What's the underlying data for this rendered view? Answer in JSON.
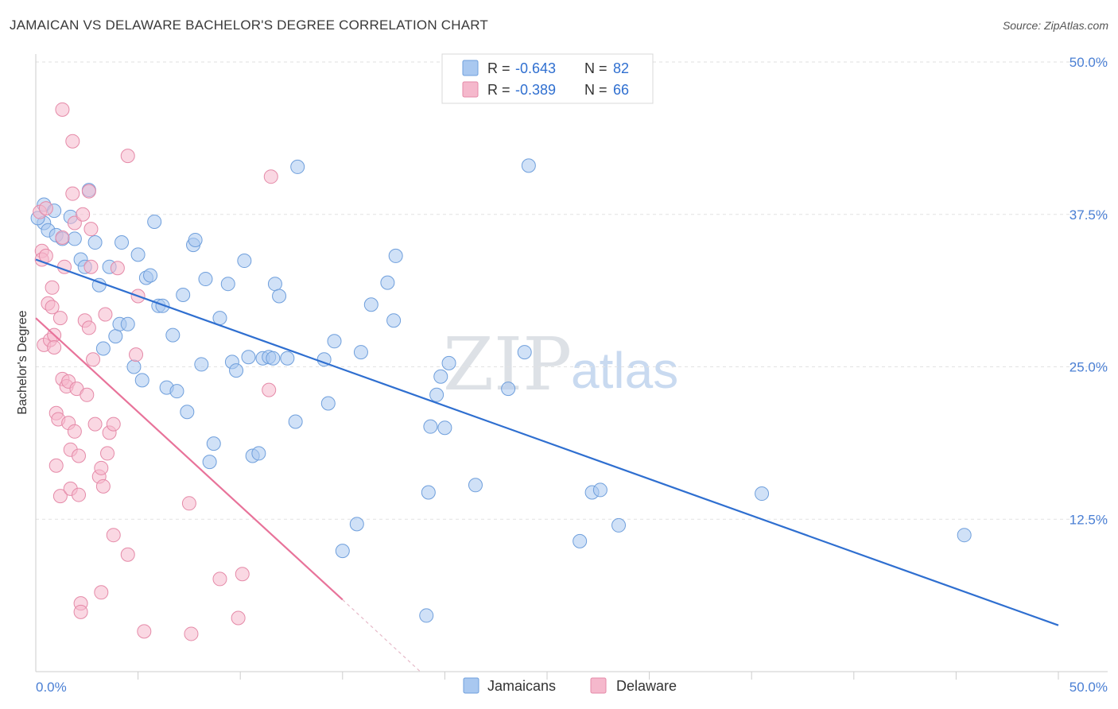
{
  "header": {
    "title": "JAMAICAN VS DELAWARE BACHELOR'S DEGREE CORRELATION CHART",
    "source": "Source: ZipAtlas.com"
  },
  "watermark": {
    "zip": "ZIP",
    "atlas": "atlas"
  },
  "legend": {
    "rows": [
      {
        "r_label": "R = ",
        "r_value": "-0.643",
        "n_label": "N = ",
        "n_value": "82",
        "color": "#a9c8f0"
      },
      {
        "r_label": "R = ",
        "r_value": "-0.389",
        "n_label": "N = ",
        "n_value": "66",
        "color": "#f5b8cc"
      }
    ]
  },
  "bottom_legend": {
    "items": [
      {
        "label": "Jamaicans",
        "color": "#a9c8f0"
      },
      {
        "label": "Delaware",
        "color": "#f5b8cc"
      }
    ]
  },
  "chart_data": {
    "type": "scatter",
    "title": "JAMAICAN VS DELAWARE BACHELOR'S DEGREE CORRELATION CHART",
    "xlabel": "",
    "ylabel": "Bachelor's Degree",
    "xlim": [
      0,
      50
    ],
    "ylim": [
      0,
      50
    ],
    "x_tick_labels": [
      "0.0%",
      "50.0%"
    ],
    "y_ticks": [
      12.5,
      25.0,
      37.5,
      50.0
    ],
    "y_tick_labels": [
      "12.5%",
      "25.0%",
      "37.5%",
      "50.0%"
    ],
    "grid": true,
    "series": [
      {
        "name": "Jamaicans",
        "color": "#a9c8f0",
        "stroke": "#6f9fdc",
        "trend_color": "#2f6fd0",
        "trend": {
          "x0": 0,
          "y0": 33.8,
          "x1": 50,
          "y1": 3.8
        },
        "points": [
          [
            0.4,
            38.3
          ],
          [
            0.4,
            36.8
          ],
          [
            0.6,
            36.2
          ],
          [
            0.9,
            37.8
          ],
          [
            1.0,
            35.8
          ],
          [
            1.3,
            35.5
          ],
          [
            1.7,
            37.3
          ],
          [
            1.9,
            35.5
          ],
          [
            2.2,
            33.8
          ],
          [
            2.4,
            33.2
          ],
          [
            2.6,
            39.5
          ],
          [
            2.9,
            35.2
          ],
          [
            3.1,
            31.7
          ],
          [
            3.3,
            26.5
          ],
          [
            3.6,
            33.2
          ],
          [
            3.9,
            27.5
          ],
          [
            4.1,
            28.5
          ],
          [
            4.2,
            35.2
          ],
          [
            4.5,
            28.5
          ],
          [
            4.8,
            25.0
          ],
          [
            5.0,
            34.2
          ],
          [
            5.2,
            23.9
          ],
          [
            5.4,
            32.3
          ],
          [
            5.6,
            32.5
          ],
          [
            5.8,
            36.9
          ],
          [
            6.0,
            30.0
          ],
          [
            6.2,
            30.0
          ],
          [
            6.4,
            23.3
          ],
          [
            6.7,
            27.6
          ],
          [
            6.9,
            23.0
          ],
          [
            7.2,
            30.9
          ],
          [
            7.4,
            21.3
          ],
          [
            7.7,
            35.0
          ],
          [
            7.8,
            35.4
          ],
          [
            8.1,
            25.2
          ],
          [
            8.3,
            32.2
          ],
          [
            8.5,
            17.2
          ],
          [
            8.7,
            18.7
          ],
          [
            9.0,
            29.0
          ],
          [
            9.4,
            31.8
          ],
          [
            9.6,
            25.4
          ],
          [
            9.8,
            24.7
          ],
          [
            10.2,
            33.7
          ],
          [
            10.4,
            25.8
          ],
          [
            10.6,
            17.7
          ],
          [
            10.9,
            17.9
          ],
          [
            11.1,
            25.7
          ],
          [
            11.4,
            25.8
          ],
          [
            11.6,
            25.7
          ],
          [
            11.7,
            31.8
          ],
          [
            11.9,
            30.8
          ],
          [
            12.3,
            25.7
          ],
          [
            12.7,
            20.5
          ],
          [
            12.8,
            41.4
          ],
          [
            14.1,
            25.6
          ],
          [
            14.3,
            22.0
          ],
          [
            14.6,
            27.1
          ],
          [
            15.0,
            9.9
          ],
          [
            15.7,
            12.1
          ],
          [
            15.9,
            26.2
          ],
          [
            16.4,
            30.1
          ],
          [
            17.2,
            31.9
          ],
          [
            17.5,
            28.8
          ],
          [
            17.6,
            34.1
          ],
          [
            19.1,
            4.6
          ],
          [
            19.2,
            14.7
          ],
          [
            19.3,
            20.1
          ],
          [
            19.6,
            22.7
          ],
          [
            19.8,
            24.2
          ],
          [
            20.0,
            20.0
          ],
          [
            20.2,
            25.3
          ],
          [
            21.5,
            15.3
          ],
          [
            23.1,
            23.2
          ],
          [
            23.9,
            26.2
          ],
          [
            24.1,
            41.5
          ],
          [
            26.6,
            10.7
          ],
          [
            27.2,
            14.7
          ],
          [
            27.6,
            14.9
          ],
          [
            28.5,
            12.0
          ],
          [
            35.5,
            14.6
          ],
          [
            45.4,
            11.2
          ],
          [
            0.1,
            37.2
          ]
        ]
      },
      {
        "name": "Delaware",
        "color": "#f5b8cc",
        "stroke": "#e58aa8",
        "trend_color": "#e8739a",
        "trend": {
          "x0": 0,
          "y0": 29.0,
          "x1": 15.0,
          "y1": 5.9
        },
        "trend_dashed": {
          "x0": 15.0,
          "y0": 5.9,
          "x1": 18.8,
          "y1": 0
        },
        "points": [
          [
            0.2,
            37.7
          ],
          [
            0.3,
            34.5
          ],
          [
            0.3,
            33.8
          ],
          [
            0.4,
            26.8
          ],
          [
            0.5,
            34.1
          ],
          [
            0.5,
            38.0
          ],
          [
            0.6,
            30.2
          ],
          [
            0.7,
            27.2
          ],
          [
            0.8,
            29.9
          ],
          [
            0.8,
            31.5
          ],
          [
            0.9,
            27.6
          ],
          [
            0.9,
            26.6
          ],
          [
            1.0,
            16.9
          ],
          [
            1.0,
            21.2
          ],
          [
            1.1,
            20.7
          ],
          [
            1.2,
            29.0
          ],
          [
            1.2,
            14.4
          ],
          [
            1.3,
            35.6
          ],
          [
            1.3,
            46.1
          ],
          [
            1.3,
            24.0
          ],
          [
            1.4,
            33.2
          ],
          [
            1.5,
            23.4
          ],
          [
            1.6,
            20.4
          ],
          [
            1.6,
            23.8
          ],
          [
            1.7,
            15.0
          ],
          [
            1.7,
            18.2
          ],
          [
            1.8,
            39.2
          ],
          [
            1.8,
            43.5
          ],
          [
            1.9,
            19.7
          ],
          [
            1.9,
            36.8
          ],
          [
            2.0,
            23.2
          ],
          [
            2.1,
            17.7
          ],
          [
            2.1,
            14.5
          ],
          [
            2.2,
            5.6
          ],
          [
            2.2,
            4.9
          ],
          [
            2.3,
            37.5
          ],
          [
            2.4,
            28.8
          ],
          [
            2.5,
            22.7
          ],
          [
            2.6,
            28.2
          ],
          [
            2.6,
            39.4
          ],
          [
            2.7,
            36.3
          ],
          [
            2.7,
            33.2
          ],
          [
            2.8,
            25.6
          ],
          [
            2.9,
            20.3
          ],
          [
            3.1,
            16.0
          ],
          [
            3.2,
            16.7
          ],
          [
            3.2,
            6.5
          ],
          [
            3.3,
            15.2
          ],
          [
            3.4,
            29.3
          ],
          [
            3.5,
            17.9
          ],
          [
            3.6,
            19.6
          ],
          [
            3.8,
            20.3
          ],
          [
            3.8,
            11.2
          ],
          [
            4.0,
            33.1
          ],
          [
            4.5,
            9.6
          ],
          [
            4.5,
            42.3
          ],
          [
            4.9,
            26.0
          ],
          [
            5.0,
            30.8
          ],
          [
            5.3,
            3.3
          ],
          [
            7.5,
            13.8
          ],
          [
            7.6,
            3.1
          ],
          [
            9.0,
            7.6
          ],
          [
            9.9,
            4.4
          ],
          [
            10.1,
            8.0
          ],
          [
            11.4,
            23.1
          ],
          [
            11.5,
            40.6
          ]
        ]
      }
    ]
  }
}
